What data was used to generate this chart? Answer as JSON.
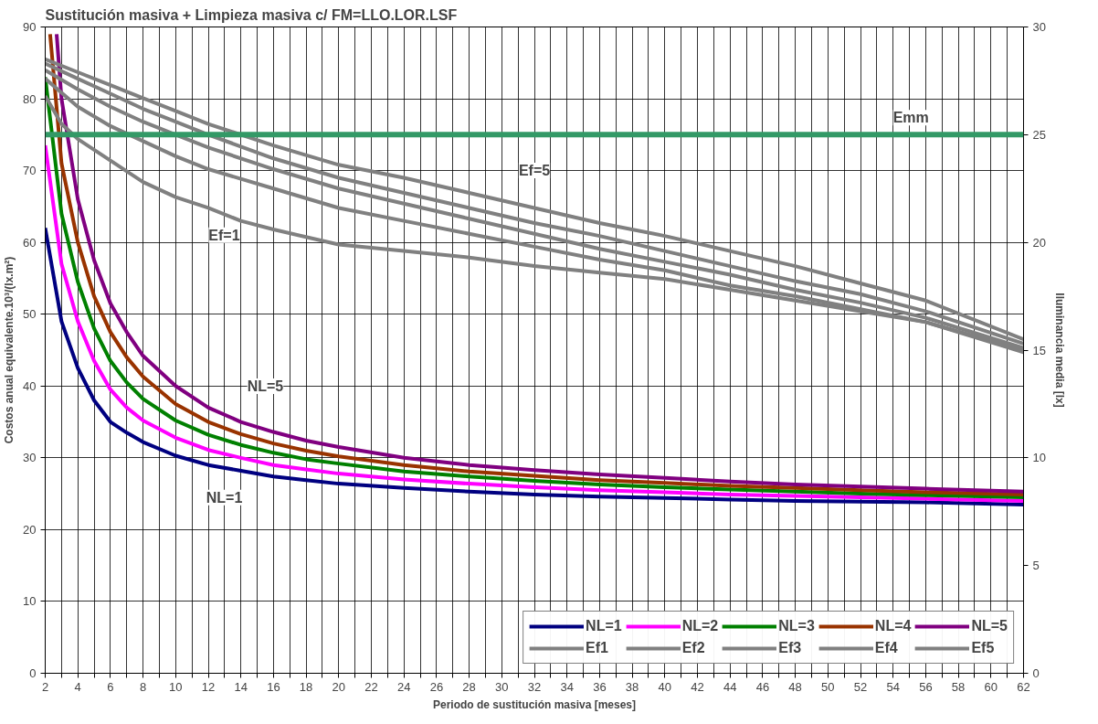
{
  "chart_data": {
    "type": "line",
    "title": "Sustitución masiva + Limpieza masiva  c/ FM=LLO.LOR.LSF",
    "xlabel": "Periodo de sustitución masiva [meses]",
    "ylabel": "Costos anual equivalente.10³/(lx.m²)",
    "y2label": "Iluminancia media [lx]",
    "xlim": [
      2,
      62
    ],
    "ylim": [
      0,
      90
    ],
    "y2lim": [
      0,
      30
    ],
    "xticks": [
      2,
      {
        "value": 3,
        "label": null
      },
      4,
      {
        "value": 5,
        "label": null
      },
      6,
      {
        "value": 7,
        "label": null
      },
      8,
      {
        "value": 9,
        "label": null
      },
      10,
      {
        "value": 11,
        "label": null
      },
      12,
      {
        "value": 13,
        "label": null
      },
      14,
      {
        "value": 15,
        "label": null
      },
      16,
      {
        "value": 17,
        "label": null
      },
      18,
      {
        "value": 19,
        "label": null
      },
      20,
      {
        "value": 21,
        "label": null
      },
      22,
      {
        "value": 23,
        "label": null
      },
      24,
      {
        "value": 25,
        "label": null
      },
      26,
      {
        "value": 27,
        "label": null
      },
      28,
      {
        "value": 29,
        "label": null
      },
      30,
      {
        "value": 31,
        "label": null
      },
      32,
      {
        "value": 33,
        "label": null
      },
      34,
      {
        "value": 35,
        "label": null
      },
      36,
      {
        "value": 37,
        "label": null
      },
      38,
      {
        "value": 39,
        "label": null
      },
      40,
      {
        "value": 41,
        "label": null
      },
      42,
      {
        "value": 43,
        "label": null
      },
      44,
      {
        "value": 45,
        "label": null
      },
      46,
      {
        "value": 47,
        "label": null
      },
      48,
      {
        "value": 49,
        "label": null
      },
      50,
      {
        "value": 51,
        "label": null
      },
      52,
      {
        "value": 53,
        "label": null
      },
      54,
      {
        "value": 55,
        "label": null
      },
      56,
      {
        "value": 57,
        "label": null
      },
      58,
      {
        "value": 59,
        "label": null
      },
      60,
      {
        "value": 61,
        "label": null
      },
      62
    ],
    "yticks": [
      0,
      10,
      20,
      30,
      40,
      50,
      60,
      70,
      80,
      90
    ],
    "y2ticks": [
      0,
      5,
      10,
      15,
      20,
      25,
      30
    ],
    "grid": true,
    "legend": "bottom right",
    "series": [
      {
        "name": "NL=1",
        "color": "#000080",
        "x": [
          2,
          3,
          4,
          5,
          6,
          7,
          8,
          10,
          12,
          14,
          16,
          18,
          20,
          24,
          28,
          32,
          36,
          40,
          44,
          48,
          52,
          56,
          62
        ],
        "values": [
          62,
          49,
          42.5,
          38,
          35,
          33.5,
          32.2,
          30.3,
          29,
          28.2,
          27.4,
          26.9,
          26.4,
          25.8,
          25.3,
          24.9,
          24.6,
          24.4,
          24.2,
          24.0,
          23.9,
          23.8,
          23.5
        ]
      },
      {
        "name": "NL=2",
        "color": "#ff00ff",
        "x": [
          2,
          3,
          4,
          5,
          6,
          7,
          8,
          10,
          12,
          14,
          16,
          18,
          20,
          24,
          28,
          32,
          36,
          40,
          44,
          48,
          52,
          56,
          62
        ],
        "values": [
          73.5,
          57,
          49,
          43.5,
          39.5,
          37,
          35.2,
          32.8,
          31.1,
          30,
          29,
          28.4,
          27.8,
          27,
          26.4,
          25.9,
          25.5,
          25.2,
          24.9,
          24.7,
          24.5,
          24.3,
          24.0
        ]
      },
      {
        "name": "NL=3",
        "color": "#008000",
        "x": [
          2,
          3,
          4,
          5,
          6,
          7,
          8,
          10,
          12,
          14,
          16,
          18,
          20,
          24,
          28,
          32,
          36,
          40,
          44,
          48,
          52,
          56,
          62
        ],
        "values": [
          83,
          64,
          54.5,
          48,
          43.5,
          40.5,
          38.2,
          35.2,
          33.2,
          31.8,
          30.7,
          29.8,
          29.2,
          28.1,
          27.4,
          26.8,
          26.3,
          25.9,
          25.6,
          25.3,
          25.0,
          24.8,
          24.5
        ]
      },
      {
        "name": "NL=4",
        "color": "#993300",
        "x": [
          2.3,
          3,
          4,
          5,
          6,
          7,
          8,
          10,
          12,
          14,
          16,
          18,
          20,
          24,
          28,
          32,
          36,
          40,
          44,
          48,
          52,
          56,
          62
        ],
        "values": [
          89,
          71,
          60,
          52.5,
          47.5,
          44,
          41.3,
          37.5,
          35,
          33.3,
          32,
          31,
          30.2,
          29,
          28.1,
          27.5,
          26.9,
          26.5,
          26.1,
          25.8,
          25.5,
          25.2,
          24.9
        ]
      },
      {
        "name": "NL=5",
        "color": "#800080",
        "x": [
          2.7,
          3,
          4,
          5,
          6,
          7,
          8,
          10,
          12,
          14,
          16,
          18,
          20,
          24,
          28,
          32,
          36,
          40,
          44,
          48,
          52,
          56,
          62
        ],
        "values": [
          89,
          80,
          66,
          57.5,
          51.5,
          47.5,
          44.2,
          40,
          37,
          35,
          33.6,
          32.4,
          31.5,
          30,
          29,
          28.3,
          27.7,
          27.2,
          26.7,
          26.3,
          26,
          25.7,
          25.3
        ]
      },
      {
        "name": "Ef1",
        "color": "#808080",
        "axis": "y2",
        "x": [
          2,
          3,
          4,
          6,
          8,
          10,
          12,
          14,
          16,
          20,
          24,
          28,
          32,
          36,
          40,
          44,
          48,
          52,
          56,
          62
        ],
        "values": [
          26.8,
          25.5,
          24.8,
          23.8,
          22.8,
          22.1,
          21.6,
          21.0,
          20.6,
          19.9,
          19.6,
          19.3,
          18.9,
          18.6,
          18.3,
          17.8,
          17.3,
          16.8,
          16.3,
          15.0
        ]
      },
      {
        "name": "Ef2",
        "color": "#808080",
        "axis": "y2",
        "x": [
          2,
          4,
          6,
          8,
          10,
          12,
          16,
          20,
          24,
          28,
          32,
          36,
          40,
          44,
          48,
          52,
          56,
          62
        ],
        "values": [
          27.6,
          26.3,
          25.4,
          24.7,
          24.0,
          23.4,
          22.5,
          21.6,
          21.0,
          20.4,
          19.8,
          19.2,
          18.7,
          18.0,
          17.5,
          16.9,
          16.3,
          14.9
        ]
      },
      {
        "name": "Ef3",
        "color": "#808080",
        "axis": "y2",
        "x": [
          2,
          4,
          6,
          8,
          10,
          12,
          16,
          20,
          24,
          28,
          32,
          36,
          40,
          44,
          48,
          52,
          56,
          62
        ],
        "values": [
          28.0,
          27.1,
          26.3,
          25.6,
          25.0,
          24.4,
          23.4,
          22.5,
          21.8,
          21.1,
          20.4,
          19.7,
          19.1,
          18.5,
          17.8,
          17.2,
          16.5,
          15.1
        ]
      },
      {
        "name": "Ef4",
        "color": "#808080",
        "axis": "y2",
        "x": [
          2,
          4,
          6,
          8,
          10,
          12,
          16,
          20,
          24,
          28,
          32,
          36,
          40,
          44,
          48,
          52,
          56,
          62
        ],
        "values": [
          28.3,
          27.6,
          26.9,
          26.2,
          25.6,
          25.0,
          23.9,
          23.0,
          22.3,
          21.6,
          20.9,
          20.3,
          19.6,
          18.9,
          18.2,
          17.6,
          16.8,
          15.3
        ]
      },
      {
        "name": "Ef5",
        "color": "#808080",
        "axis": "y2",
        "x": [
          2,
          4,
          6,
          8,
          10,
          12,
          16,
          20,
          24,
          28,
          32,
          36,
          40,
          44,
          48,
          52,
          56,
          62
        ],
        "values": [
          28.5,
          27.9,
          27.3,
          26.7,
          26.1,
          25.5,
          24.5,
          23.6,
          23.0,
          22.3,
          21.6,
          20.9,
          20.3,
          19.6,
          18.9,
          18.1,
          17.3,
          15.5
        ]
      }
    ],
    "ref_lines": [
      {
        "axis": "y2",
        "value": 25,
        "label": "Emm",
        "color": "#339966"
      }
    ],
    "annotations": [
      "Ef=5",
      "Ef=1",
      "NL=5",
      "NL=1"
    ]
  }
}
